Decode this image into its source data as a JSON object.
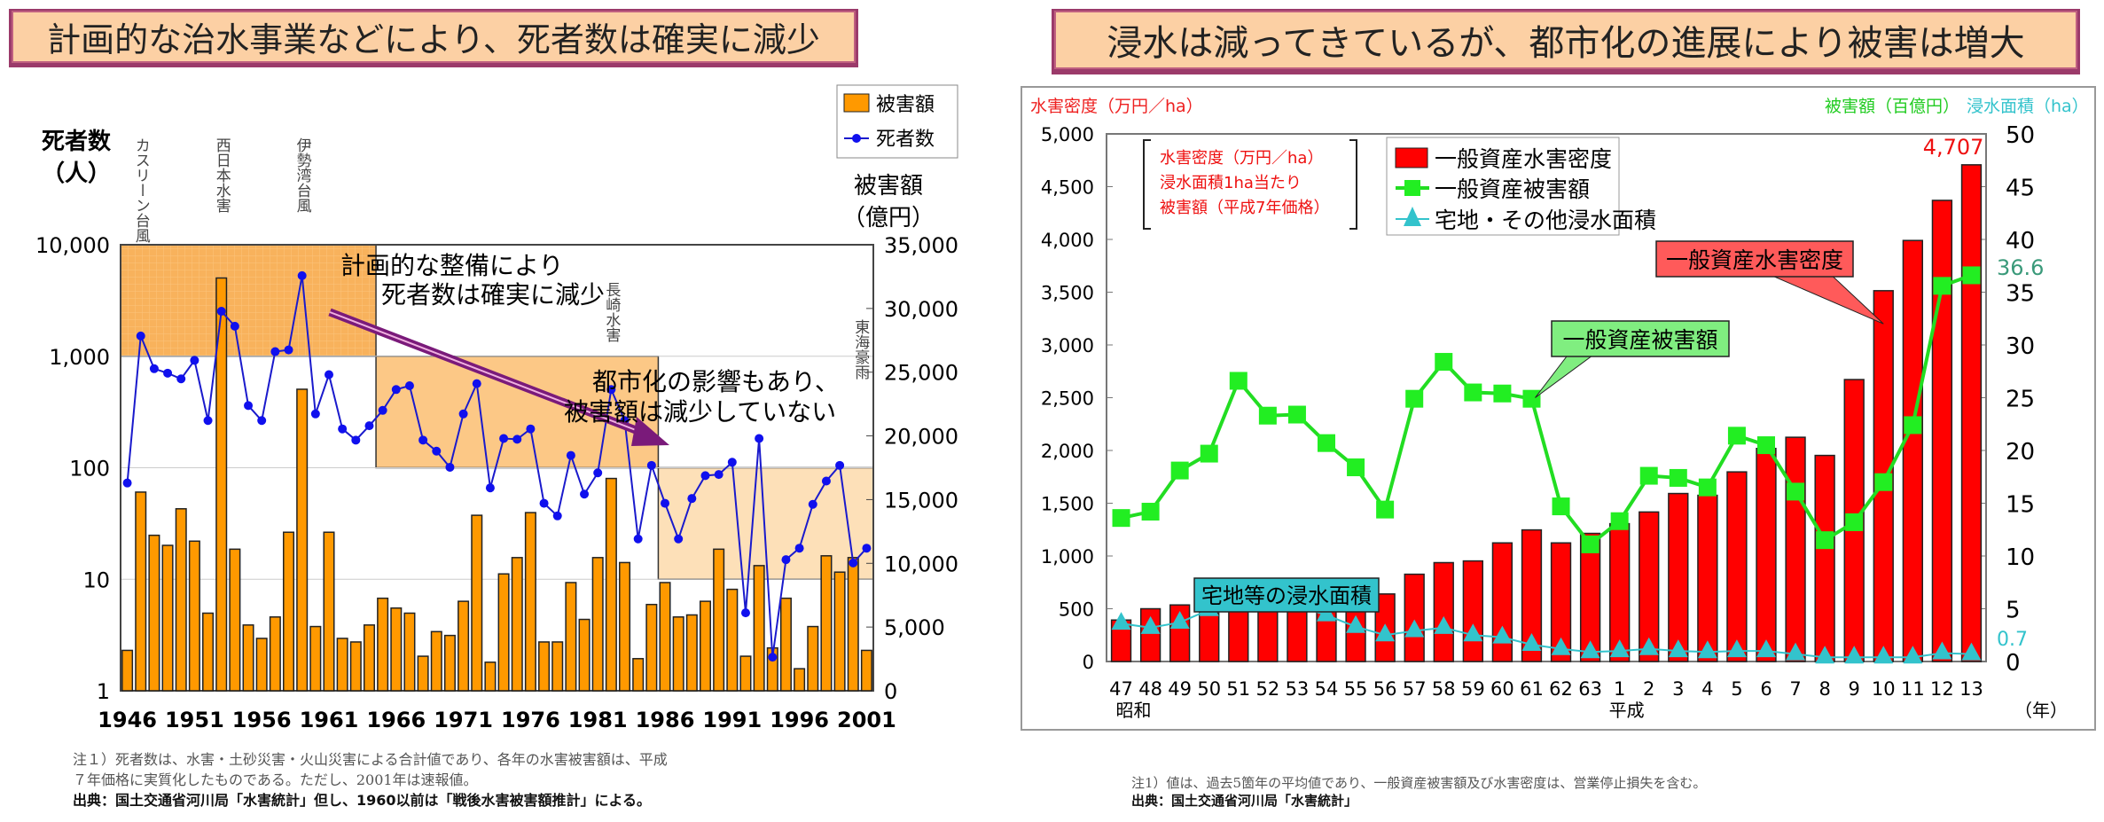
{
  "left_panel": {
    "banner": "計画的な治水事業などにより、死者数は確実に減少",
    "notes": [
      "注１）死者数は、水害・土砂災害・火山災害による合計値であり、各年の水害被害額は、平成",
      "７年価格に実質化したものである。ただし、2001年は速報値。"
    ],
    "source": "出典：国土交通省河川局「水害統計」但し、1960以前は「戦後水害被害額推計」による。"
  },
  "right_panel": {
    "banner": "浸水は減ってきているが、都市化の進展により被害は増大",
    "notes": [
      "注1）値は、過去5箇年の平均値であり、一般資産被害額及び水害密度は、営業停止損失を含む。"
    ],
    "source": "出典：国土交通省河川局「水害統計」"
  },
  "chart_data": [
    {
      "type": "bar+line",
      "title": "計画的な治水事業などにより、死者数は確実に減少",
      "ylabel_left": [
        "死者数",
        "（人）"
      ],
      "ylabel_right": [
        "被害額",
        "（億円）"
      ],
      "yscale_left": "log",
      "ylim_left": [
        1,
        10000
      ],
      "ylim_right": [
        0,
        35000
      ],
      "yticks_left": [
        "10,000",
        "1,000",
        "100",
        "10",
        "1"
      ],
      "yticks_right": [
        "35,000",
        "30,000",
        "25,000",
        "20,000",
        "15,000",
        "10,000",
        "5,000",
        "0"
      ],
      "xtick_labels": [
        "1946",
        "1951",
        "1956",
        "1961",
        "1966",
        "1971",
        "1976",
        "1981",
        "1986",
        "1991",
        "1996",
        "2001"
      ],
      "legend": {
        "position": "top-right",
        "entries": [
          "被害額",
          "死者数"
        ]
      },
      "x_start_year": 1946,
      "series": [
        {
          "name": "被害額",
          "type": "bar",
          "axis": "right",
          "color": "#ff9900",
          "values": [
            3170,
            15590,
            12200,
            11410,
            14280,
            11740,
            6090,
            32390,
            11110,
            5160,
            4110,
            5790,
            12440,
            23660,
            5040,
            12440,
            4110,
            3830,
            5160,
            7260,
            6490,
            6090,
            2710,
            4640,
            4340,
            7020,
            13770,
            2240,
            9170,
            10450,
            13980,
            3830,
            3830,
            8490,
            5600,
            10450,
            16660,
            10060,
            2520,
            6770,
            8490,
            5790,
            5950,
            7020,
            11110,
            7960,
            2710,
            9820,
            3360,
            7260,
            1730,
            5040,
            10590,
            9310,
            10450,
            3170
          ]
        },
        {
          "name": "死者数",
          "type": "line",
          "axis": "left",
          "color": "#1a1acc",
          "values": [
            73,
            1520,
            773,
            705,
            627,
            918,
            265,
            2530,
            1860,
            361,
            265,
            1100,
            1140,
            5280,
            304,
            684,
            223,
            177,
            238,
            327,
            503,
            544,
            177,
            141,
            101,
            304,
            568,
            66,
            183,
            180,
            223,
            48,
            37,
            129,
            58,
            90,
            503,
            265,
            23,
            105,
            48,
            23,
            53,
            85,
            87,
            112,
            5,
            183,
            2,
            15,
            19,
            47,
            76,
            105,
            14,
            19
          ]
        }
      ],
      "period_boxes": [
        {
          "from_year": 1946,
          "to_year": 1964,
          "range": [
            1000,
            10000
          ]
        },
        {
          "from_year": 1965,
          "to_year": 1985,
          "range": [
            100,
            1000
          ]
        },
        {
          "from_year": 1986,
          "to_year": 2001,
          "range": [
            10,
            100
          ]
        }
      ],
      "event_labels": [
        {
          "year": 1947,
          "text": "カスリーン台風"
        },
        {
          "year": 1953,
          "text": "西日本水害"
        },
        {
          "year": 1959,
          "text": "伊勢湾台風"
        },
        {
          "year": 1982,
          "text": "長崎水害"
        },
        {
          "year": 2000,
          "text": "東海豪雨"
        }
      ],
      "annotations": [
        [
          "計画的な整備により",
          "死者数は確実に減少"
        ],
        [
          "都市化の影響もあり、",
          "被害額は減少していない"
        ]
      ]
    },
    {
      "type": "bar+line",
      "title": "浸水は減ってきているが、都市化の進展により被害は増大",
      "ylabel_left": "水害密度（万円／ha）",
      "ylabel_right_1": "被害額（百億円）",
      "ylabel_right_2": "浸水面積（ha）",
      "ylim_left": [
        0,
        5000
      ],
      "ylim_right": [
        0,
        50
      ],
      "yticks_left": [
        "5,000",
        "4,500",
        "4,000",
        "3,500",
        "3,000",
        "2,500",
        "2,000",
        "1,500",
        "1,000",
        "500",
        "0"
      ],
      "yticks_right": [
        "50",
        "45",
        "40",
        "35",
        "30",
        "25",
        "20",
        "15",
        "10",
        "5",
        "0"
      ],
      "categories": [
        "47",
        "48",
        "49",
        "50",
        "51",
        "52",
        "53",
        "54",
        "55",
        "56",
        "57",
        "58",
        "59",
        "60",
        "61",
        "62",
        "63",
        "1",
        "2",
        "3",
        "4",
        "5",
        "6",
        "7",
        "8",
        "9",
        "10",
        "11",
        "12",
        "13"
      ],
      "era_labels": [
        "昭和",
        "平成"
      ],
      "xlabel": "（年）",
      "note_box": [
        "水害密度（万円／ha）",
        "浸水面積1ha当たり",
        "被害額（平成7年価格）"
      ],
      "legend": {
        "position": "top-center",
        "entries": [
          "一般資産水害密度",
          "一般資産被害額",
          "宅地・その他浸水面積"
        ]
      },
      "series": [
        {
          "name": "一般資産水害密度",
          "type": "bar",
          "axis": "left",
          "color": "#ff0000",
          "values": [
            393,
            500,
            536,
            459,
            500,
            563,
            563,
            582,
            626,
            640,
            827,
            937,
            953,
            1124,
            1247,
            1124,
            1214,
            1306,
            1417,
            1592,
            1575,
            1797,
            2019,
            2125,
            1953,
            2672,
            3514,
            3990,
            4370,
            4707
          ]
        },
        {
          "name": "一般資産被害額",
          "type": "line",
          "axis": "right",
          "color": "#22dd22",
          "values": [
            13.6,
            14.2,
            18.1,
            19.7,
            26.6,
            23.3,
            23.4,
            20.7,
            18.4,
            14.4,
            24.9,
            28.4,
            25.5,
            25.4,
            24.9,
            14.7,
            11.1,
            13.3,
            17.6,
            17.4,
            16.5,
            21.4,
            20.5,
            16.1,
            11.5,
            13.2,
            17.0,
            22.4,
            35.6,
            36.6
          ]
        },
        {
          "name": "宅地・その他浸水面積",
          "type": "line",
          "axis": "right",
          "color": "#33c3cc",
          "values": [
            3.6,
            3.2,
            3.7,
            4.9,
            5.9,
            5.3,
            5.3,
            4.4,
            3.3,
            2.5,
            2.9,
            3.2,
            2.5,
            2.3,
            1.6,
            1.2,
            0.9,
            1.0,
            1.2,
            1.0,
            0.9,
            1.0,
            1.0,
            0.7,
            0.4,
            0.4,
            0.4,
            0.4,
            0.8,
            0.7
          ]
        }
      ],
      "value_labels": {
        "density_last": "4,707",
        "damage_last": "36.6",
        "area_last": "0.7"
      },
      "callouts": [
        "一般資産水害密度",
        "一般資産被害額",
        "宅地等の浸水面積"
      ]
    }
  ]
}
